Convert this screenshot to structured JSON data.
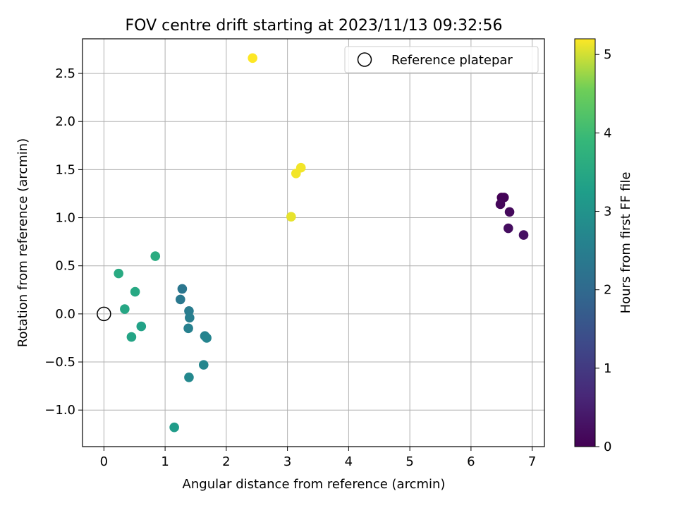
{
  "chart_data": {
    "type": "scatter",
    "title": "FOV centre drift starting at 2023/11/13 09:32:56",
    "xlabel": "Angular distance from reference (arcmin)",
    "ylabel": "Rotation from reference (arcmin)",
    "xlim": [
      -0.35,
      7.2
    ],
    "ylim": [
      -1.38,
      2.86
    ],
    "xticks": [
      0,
      1,
      2,
      3,
      4,
      5,
      6,
      7
    ],
    "xtick_labels": [
      "0",
      "1",
      "2",
      "3",
      "4",
      "5",
      "6",
      "7"
    ],
    "yticks": [
      -1.0,
      -0.5,
      0.0,
      0.5,
      1.0,
      1.5,
      2.0,
      2.5
    ],
    "ytick_labels": [
      "−1.0",
      "−0.5",
      "0.0",
      "0.5",
      "1.0",
      "1.5",
      "2.0",
      "2.5"
    ],
    "grid": true,
    "legend": {
      "position": "upper right",
      "entries": [
        "Reference platepar"
      ]
    },
    "reference_point": {
      "x": 0.0,
      "y": 0.0
    },
    "colorbar": {
      "label": "Hours from first FF file",
      "colormap": "viridis",
      "range": [
        0,
        5.2
      ],
      "ticks": [
        0,
        1,
        2,
        3,
        4,
        5
      ],
      "tick_labels": [
        "0",
        "1",
        "2",
        "3",
        "4",
        "5"
      ]
    },
    "series": [
      {
        "points": [
          {
            "x": 6.5,
            "y": 1.21,
            "hours": 0.0
          },
          {
            "x": 6.54,
            "y": 1.21,
            "hours": 0.05
          },
          {
            "x": 6.48,
            "y": 1.14,
            "hours": 0.1
          },
          {
            "x": 6.63,
            "y": 1.06,
            "hours": 0.15
          },
          {
            "x": 6.61,
            "y": 0.89,
            "hours": 0.2
          },
          {
            "x": 6.86,
            "y": 0.82,
            "hours": 0.25
          },
          {
            "x": 1.28,
            "y": 0.26,
            "hours": 2.3
          },
          {
            "x": 1.25,
            "y": 0.15,
            "hours": 2.35
          },
          {
            "x": 1.39,
            "y": 0.03,
            "hours": 2.45
          },
          {
            "x": 1.4,
            "y": -0.04,
            "hours": 2.5
          },
          {
            "x": 1.38,
            "y": -0.15,
            "hours": 2.55
          },
          {
            "x": 1.65,
            "y": -0.23,
            "hours": 2.6
          },
          {
            "x": 1.68,
            "y": -0.25,
            "hours": 2.65
          },
          {
            "x": 1.63,
            "y": -0.53,
            "hours": 2.7
          },
          {
            "x": 1.39,
            "y": -0.66,
            "hours": 2.75
          },
          {
            "x": 1.15,
            "y": -1.18,
            "hours": 3.2
          },
          {
            "x": 0.61,
            "y": -0.13,
            "hours": 3.35
          },
          {
            "x": 0.45,
            "y": -0.24,
            "hours": 3.4
          },
          {
            "x": 0.34,
            "y": 0.05,
            "hours": 3.45
          },
          {
            "x": 0.51,
            "y": 0.23,
            "hours": 3.5
          },
          {
            "x": 0.24,
            "y": 0.42,
            "hours": 3.55
          },
          {
            "x": 0.84,
            "y": 0.6,
            "hours": 3.6
          },
          {
            "x": 3.06,
            "y": 1.01,
            "hours": 5.1
          },
          {
            "x": 3.14,
            "y": 1.46,
            "hours": 5.15
          },
          {
            "x": 3.22,
            "y": 1.52,
            "hours": 5.15
          },
          {
            "x": 2.43,
            "y": 2.66,
            "hours": 5.2
          }
        ]
      }
    ]
  }
}
